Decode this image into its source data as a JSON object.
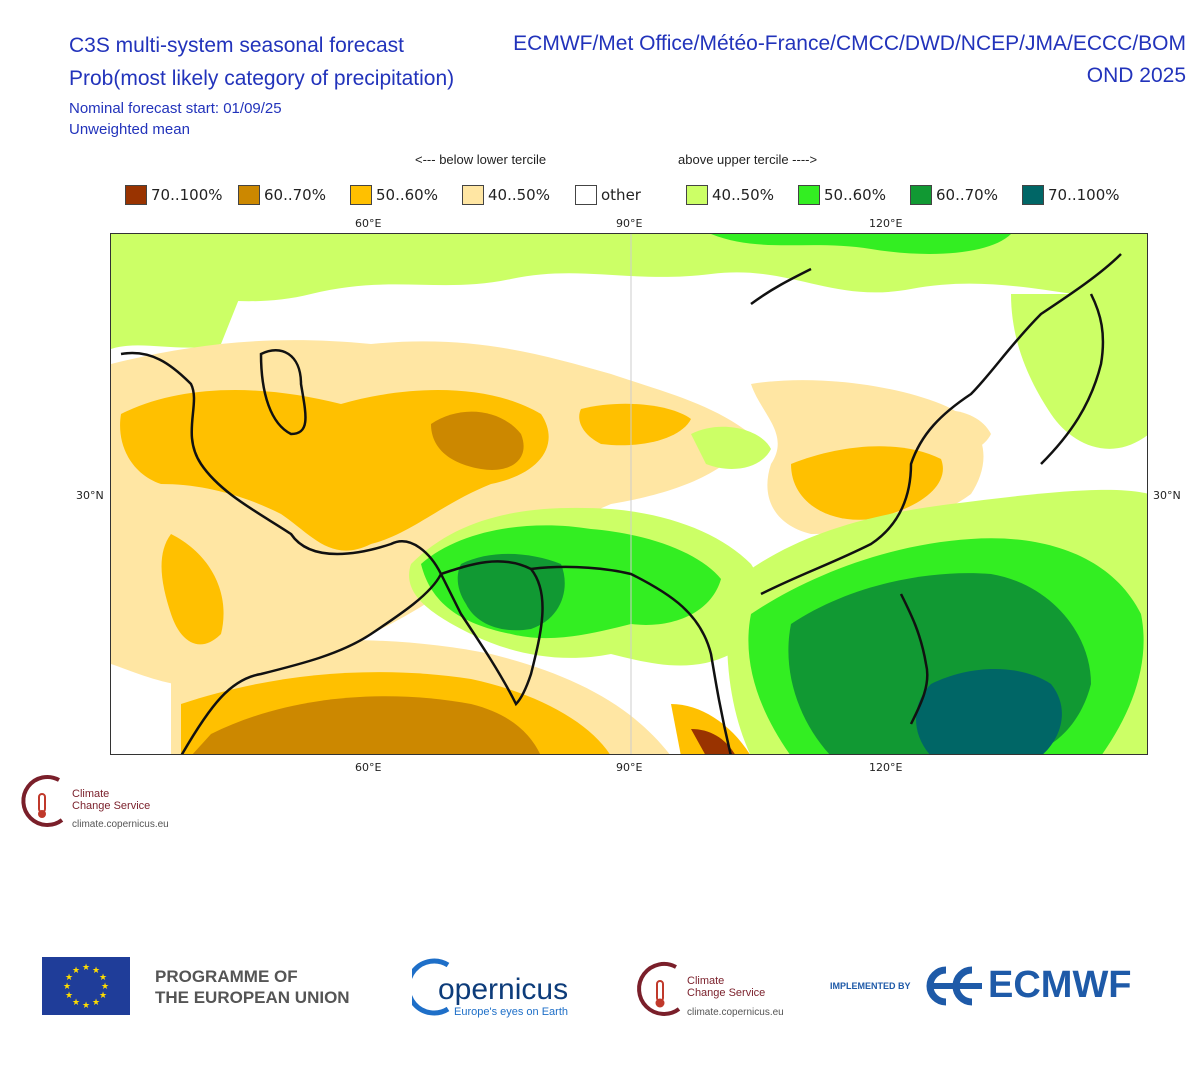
{
  "header": {
    "title_left": "C3S multi-system seasonal forecast",
    "title_right": "ECMWF/Met Office/Météo-France/CMCC/DWD/NCEP/JMA/ECCC/BOM",
    "subtitle": "Prob(most likely category of precipitation)",
    "period": "OND 2025",
    "start": "Nominal forecast start: 01/09/25",
    "mean": "Unweighted mean"
  },
  "legend": {
    "below_label": "<--- below lower tercile",
    "above_label": "above upper tercile ---->",
    "items": [
      {
        "label": "70..100%",
        "color": "#993300"
      },
      {
        "label": "60..70%",
        "color": "#cc8800"
      },
      {
        "label": "50..60%",
        "color": "#ffc000"
      },
      {
        "label": "40..50%",
        "color": "#ffe6a3"
      },
      {
        "label": "other",
        "color": "#ffffff"
      },
      {
        "label": "40..50%",
        "color": "#ccff66"
      },
      {
        "label": "50..60%",
        "color": "#33ee22"
      },
      {
        "label": "60..70%",
        "color": "#119933"
      },
      {
        "label": "70..100%",
        "color": "#006666"
      }
    ]
  },
  "axes": {
    "lon_top": [
      "60°E",
      "90°E",
      "120°E"
    ],
    "lon_bottom": [
      "60°E",
      "90°E",
      "120°E"
    ],
    "lat_left": "30°N",
    "lat_right": "30°N"
  },
  "logos": {
    "c3s_line1": "Climate",
    "c3s_line2": "Change Service",
    "c3s_url": "climate.copernicus.eu",
    "eu_line1": "PROGRAMME OF",
    "eu_line2": "THE EUROPEAN UNION",
    "copernicus_name": "opernicus",
    "copernicus_tagline": "Europe's eyes on Earth",
    "implemented_by": "IMPLEMENTED BY",
    "ecmwf": "ECMWF"
  }
}
